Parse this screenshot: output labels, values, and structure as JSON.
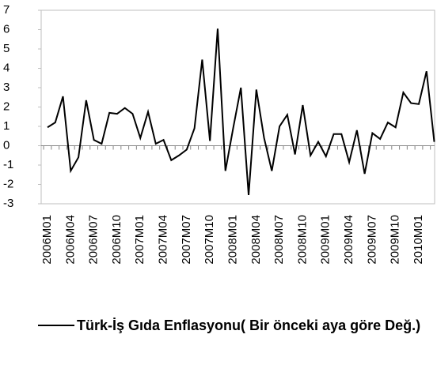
{
  "chart_data": {
    "type": "line",
    "categories": [
      "2006M01",
      null,
      null,
      "2006M04",
      null,
      null,
      "2006M07",
      null,
      null,
      "2006M10",
      null,
      null,
      "2007M01",
      null,
      null,
      "2007M04",
      null,
      null,
      "2007M07",
      null,
      null,
      "2007M10",
      null,
      null,
      "2008M01",
      null,
      null,
      "2008M04",
      null,
      null,
      "2008M07",
      null,
      null,
      "2008M10",
      null,
      null,
      "2009M01",
      null,
      null,
      "2009M04",
      null,
      null,
      "2009M07",
      null,
      null,
      "2009M10",
      null,
      null,
      "2010M01",
      null,
      null
    ],
    "series": [
      {
        "name": "Türk-İş Gıda Enflasyonu( Bir önceki aya göre Değ.)",
        "color": "#000000",
        "values": [
          0.95,
          1.2,
          2.55,
          -1.3,
          -0.6,
          2.35,
          0.3,
          0.1,
          1.7,
          1.65,
          1.95,
          1.65,
          0.4,
          1.75,
          0.1,
          0.3,
          -0.75,
          -0.5,
          -0.2,
          0.9,
          4.45,
          0.25,
          6.05,
          -1.3,
          0.9,
          3.0,
          -2.55,
          2.9,
          0.4,
          -1.3,
          1.0,
          1.6,
          -0.45,
          2.1,
          -0.5,
          0.2,
          -0.55,
          0.6,
          0.6,
          -0.85,
          0.8,
          -1.45,
          0.65,
          0.35,
          1.2,
          0.95,
          2.75,
          2.2,
          2.15,
          3.85,
          0.2
        ]
      }
    ],
    "ylim": [
      -3,
      7
    ],
    "yticks": [
      -3,
      -2,
      -1,
      0,
      1,
      2,
      3,
      4,
      5,
      6,
      7
    ],
    "grid": false,
    "legend": "bottom"
  }
}
